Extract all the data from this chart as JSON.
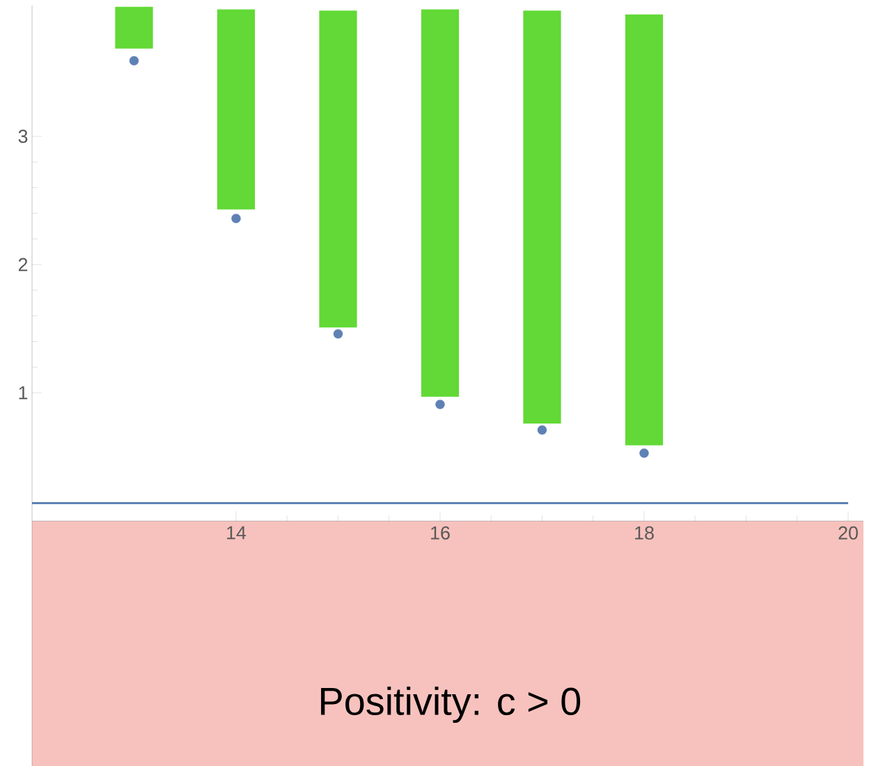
{
  "chart_data": {
    "type": "bar",
    "x": [
      13,
      14,
      15,
      16,
      17,
      18
    ],
    "series": [
      {
        "color": "#62d936",
        "base": [
          3.685,
          2.43,
          1.51,
          0.97,
          0.76,
          0.59
        ],
        "values": [
          0.325,
          1.56,
          2.47,
          3.02,
          3.22,
          3.36
        ]
      },
      {
        "type": "scatter",
        "color": "#5e81b5",
        "marker": "circle",
        "values": [
          3.59,
          2.36,
          1.46,
          0.91,
          0.71,
          0.53
        ]
      }
    ],
    "xlim": [
      12,
      20.15
    ],
    "ylim": [
      -1.91,
      4.02
    ],
    "xticks": [
      14,
      16,
      18,
      20
    ],
    "yticks": [
      1,
      2,
      3
    ],
    "ref_lines": [
      {
        "axis": "y",
        "value": 0.14,
        "color": "#5e81b5"
      }
    ],
    "bands": [
      {
        "axis": "y",
        "from": -1.91,
        "to": 0,
        "label": "Positivity: c > 0",
        "color": "#f7c2bd"
      }
    ],
    "grid": false
  }
}
